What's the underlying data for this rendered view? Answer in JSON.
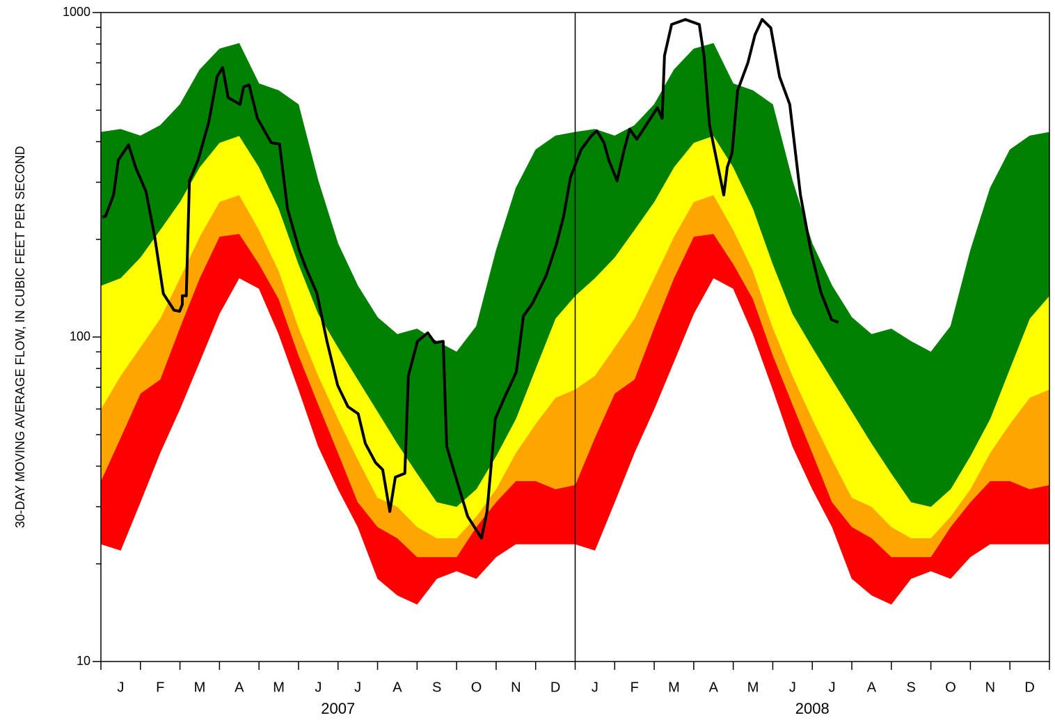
{
  "chart_data": {
    "type": "percentile_band",
    "ylabel": "30-DAY MOVING AVERAGE FLOW, IN CUBIC FEET PER SECOND",
    "log_y": true,
    "ylim": [
      10,
      1000
    ],
    "yticks": [
      10,
      100,
      1000
    ],
    "yminorticks": [
      20,
      30,
      40,
      50,
      60,
      70,
      80,
      90,
      200,
      300,
      400,
      500,
      600,
      700,
      800,
      900
    ],
    "xlim": [
      0,
      24
    ],
    "xticks": [
      0,
      1,
      2,
      3,
      4,
      5,
      6,
      7,
      8,
      9,
      10,
      11,
      12,
      13,
      14,
      15,
      16,
      17,
      18,
      19,
      20,
      21,
      22,
      23,
      24
    ],
    "categories": [
      "J",
      "F",
      "M",
      "A",
      "M",
      "J",
      "J",
      "A",
      "S",
      "O",
      "N",
      "D",
      "J",
      "F",
      "M",
      "A",
      "M",
      "J",
      "J",
      "A",
      "S",
      "O",
      "N",
      "D"
    ],
    "year_labels": [
      "2007",
      "2008"
    ],
    "divider_x": 12,
    "band_x": [
      0,
      0.5,
      1,
      1.5,
      2,
      2.5,
      3,
      3.5,
      4,
      4.5,
      5,
      5.5,
      6,
      6.5,
      7,
      7.5,
      8,
      8.5,
      9,
      9.5,
      10,
      10.5,
      11,
      11.5,
      12,
      12.5,
      13,
      13.5,
      14,
      14.5,
      15,
      15.5,
      16,
      16.5,
      17,
      17.5,
      18,
      18.5,
      19,
      19.5,
      20,
      20.5,
      21,
      21.5,
      22,
      22.5,
      23,
      23.5,
      24
    ],
    "band_edges": [
      [
        23,
        22,
        31,
        44,
        60,
        84,
        118,
        152,
        141,
        102,
        69,
        46,
        34,
        26,
        18,
        16,
        15,
        18,
        19,
        18,
        21,
        23,
        23,
        23,
        23,
        22,
        31,
        44,
        60,
        84,
        118,
        152,
        141,
        102,
        69,
        46,
        34,
        26,
        18,
        16,
        15,
        18,
        19,
        18,
        21,
        23,
        23,
        23,
        23
      ],
      [
        36,
        49,
        67,
        74,
        107,
        152,
        204,
        208,
        168,
        131,
        88,
        62,
        44,
        31,
        26,
        24,
        21,
        21,
        21,
        26,
        31,
        36,
        36,
        34,
        35,
        49,
        67,
        74,
        107,
        152,
        204,
        208,
        168,
        131,
        88,
        62,
        44,
        31,
        26,
        24,
        21,
        21,
        21,
        26,
        31,
        36,
        36,
        34,
        35
      ],
      [
        60,
        76,
        93,
        114,
        152,
        204,
        261,
        274,
        214,
        160,
        107,
        76,
        56,
        42,
        32,
        30,
        26,
        24,
        24,
        28,
        34,
        44,
        54,
        65,
        69,
        76,
        93,
        114,
        152,
        204,
        261,
        274,
        214,
        160,
        107,
        76,
        56,
        42,
        32,
        30,
        26,
        24,
        24,
        28,
        34,
        44,
        54,
        65,
        69
      ],
      [
        144,
        152,
        176,
        214,
        261,
        334,
        397,
        417,
        334,
        249,
        168,
        118,
        93,
        74,
        59,
        47,
        38,
        31,
        30,
        34,
        43,
        56,
        80,
        114,
        134,
        152,
        176,
        214,
        261,
        334,
        397,
        417,
        334,
        249,
        168,
        118,
        93,
        74,
        59,
        47,
        38,
        31,
        30,
        34,
        43,
        56,
        80,
        114,
        134
      ],
      [
        428,
        437,
        417,
        449,
        521,
        667,
        773,
        804,
        604,
        575,
        521,
        303,
        194,
        144,
        115,
        102,
        106,
        97,
        90,
        108,
        185,
        288,
        378,
        417,
        428,
        437,
        417,
        449,
        521,
        667,
        773,
        804,
        604,
        575,
        521,
        303,
        194,
        144,
        115,
        102,
        106,
        97,
        90,
        108,
        185,
        288,
        378,
        417,
        428
      ]
    ],
    "band_colors": [
      "#ff0000",
      "#ffa500",
      "#ffff00",
      "#008000"
    ],
    "line": {
      "color": "#000000",
      "x": [
        0.04,
        0.12,
        0.32,
        0.44,
        0.7,
        0.88,
        1.14,
        1.36,
        1.58,
        1.85,
        1.99,
        2.06,
        2.06,
        2.16,
        2.24,
        2.46,
        2.73,
        2.94,
        3.08,
        3.22,
        3.52,
        3.61,
        3.75,
        3.96,
        4.31,
        4.52,
        4.72,
        5.02,
        5.19,
        5.46,
        5.72,
        5.99,
        6.25,
        6.51,
        6.69,
        6.95,
        7.13,
        7.31,
        7.45,
        7.69,
        7.78,
        8.01,
        8.27,
        8.45,
        8.66,
        8.75,
        8.98,
        9.28,
        9.63,
        9.77,
        9.98,
        10.21,
        10.51,
        10.69,
        10.92,
        11.27,
        11.53,
        11.71,
        11.88,
        12.15,
        12.41,
        12.55,
        12.73,
        12.85,
        13.06,
        13.24,
        13.38,
        13.56,
        13.73,
        14.08,
        14.2,
        14.26,
        14.44,
        14.79,
        15.14,
        15.26,
        15.4,
        15.76,
        15.85,
        15.97,
        16.11,
        16.37,
        16.55,
        16.73,
        16.95,
        17.17,
        17.43,
        17.7,
        17.96,
        18.22,
        18.49,
        18.66
      ],
      "values": [
        234,
        236,
        274,
        351,
        391,
        333,
        281,
        204,
        136,
        121,
        120,
        126,
        134,
        134,
        303,
        351,
        460,
        635,
        677,
        547,
        521,
        590,
        598,
        472,
        397,
        393,
        249,
        185,
        163,
        137,
        97,
        71,
        61,
        58,
        47,
        41,
        39,
        29,
        37,
        38,
        76,
        97,
        103,
        96,
        97,
        46,
        37,
        28,
        24,
        29,
        56,
        65,
        78,
        116,
        127,
        155,
        194,
        236,
        310,
        378,
        417,
        432,
        397,
        351,
        303,
        378,
        437,
        407,
        437,
        509,
        472,
        736,
        919,
        952,
        919,
        736,
        449,
        274,
        334,
        369,
        575,
        700,
        854,
        952,
        897,
        635,
        521,
        274,
        185,
        137,
        113,
        111
      ]
    }
  }
}
